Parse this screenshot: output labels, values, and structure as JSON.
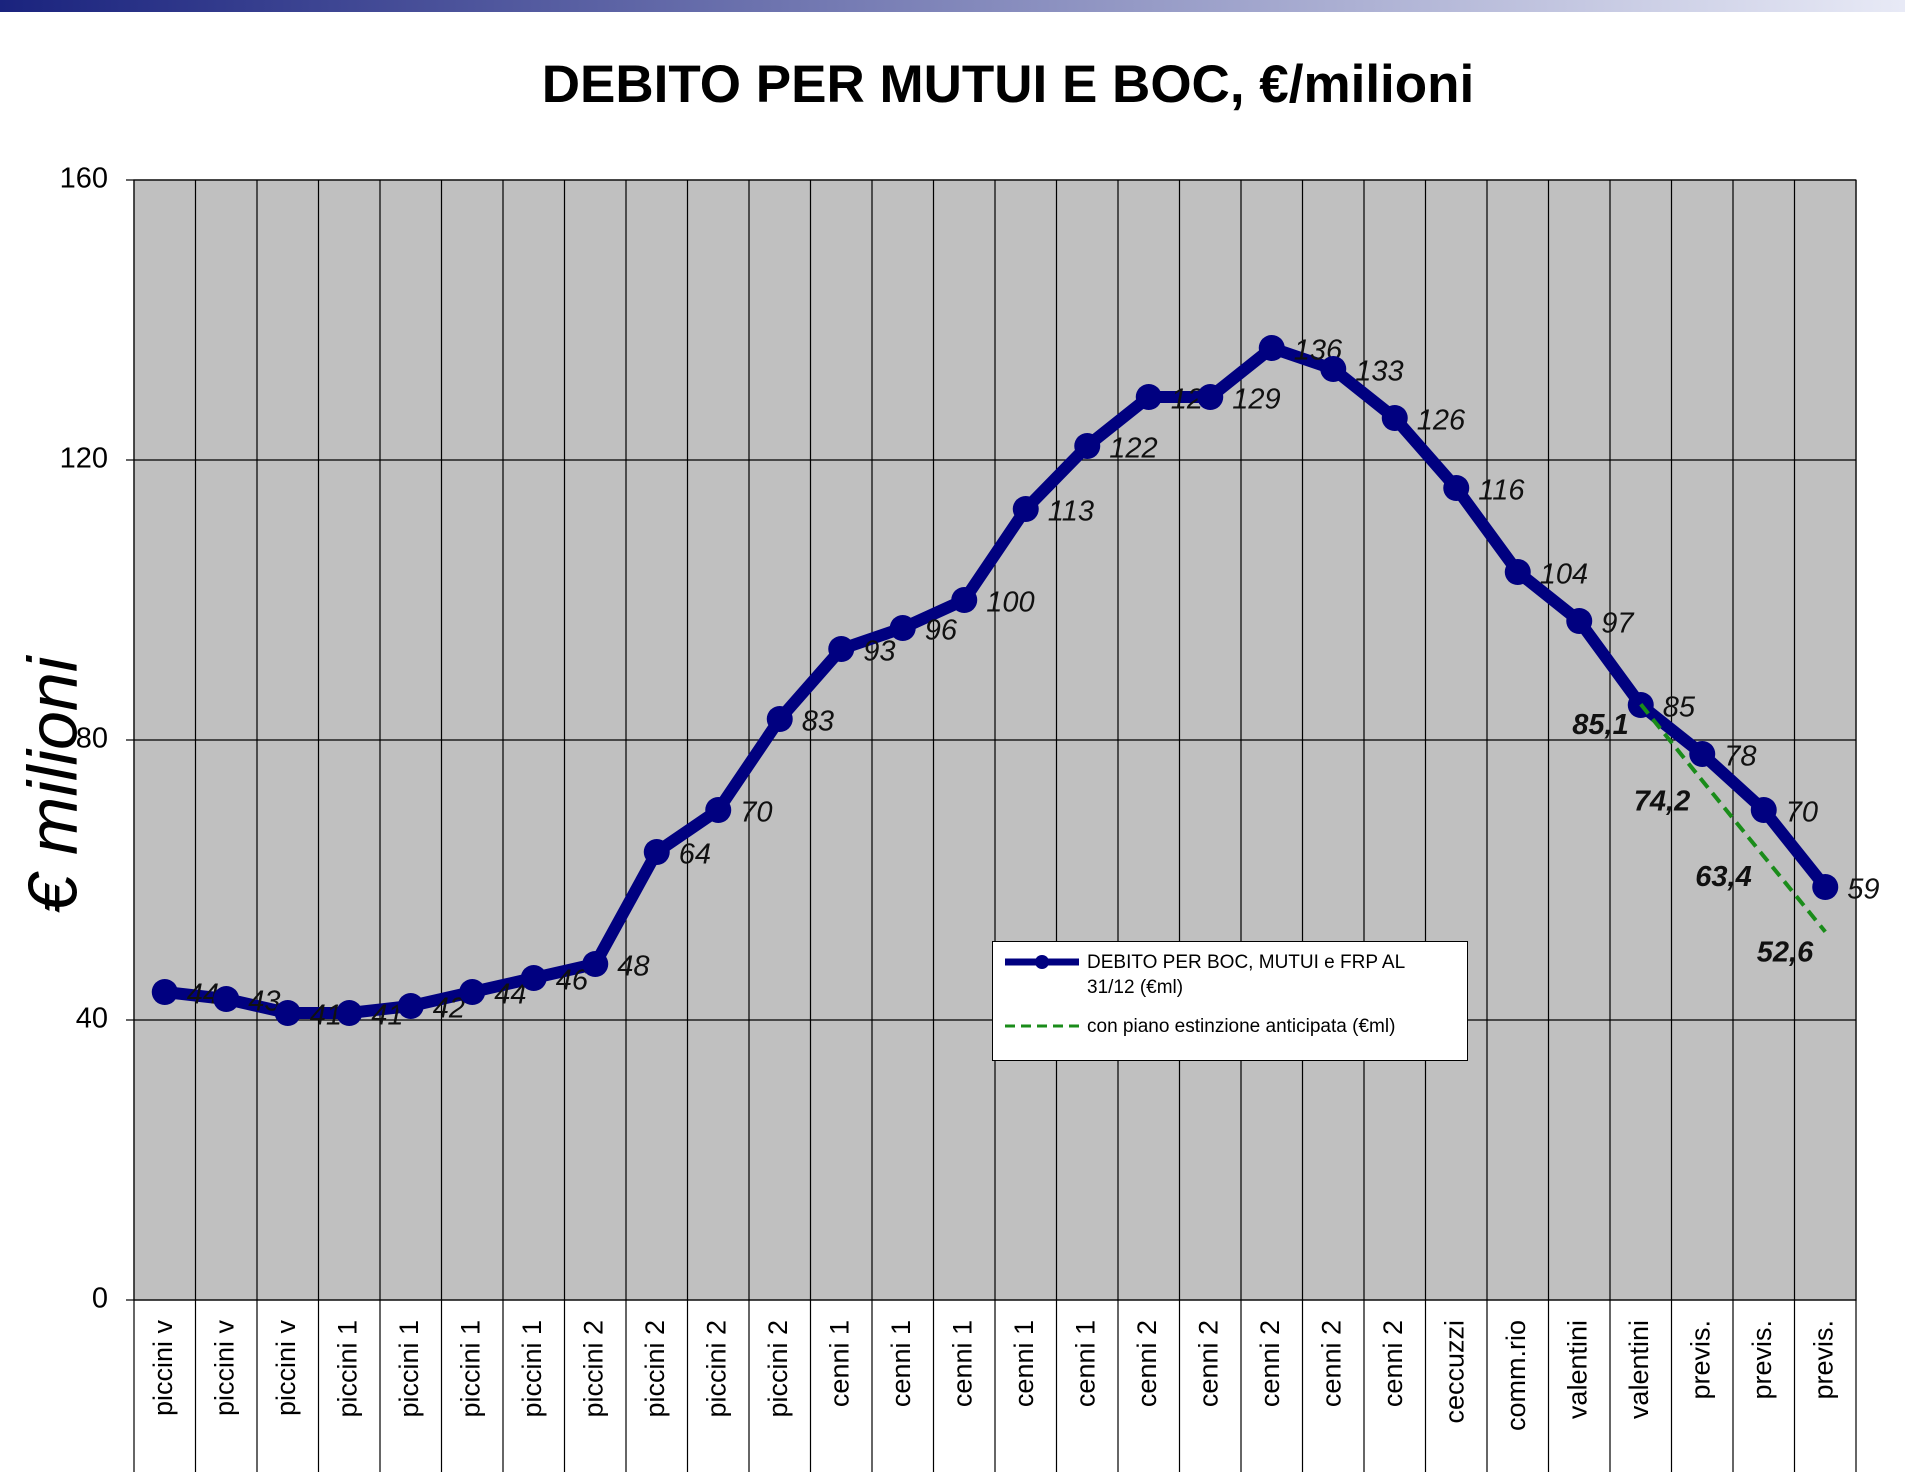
{
  "chart_data": {
    "type": "line",
    "title": "DEBITO PER MUTUI E BOC, €/milioni",
    "y_label": "€ milioni",
    "categories": [
      "piccini v",
      "piccini v",
      "piccini v",
      "piccini 1",
      "piccini 1",
      "piccini 1",
      "piccini 1",
      "piccini 2",
      "piccini 2",
      "piccini 2",
      "piccini 2",
      "cenni 1",
      "cenni 1",
      "cenni 1",
      "cenni 1",
      "cenni 1",
      "cenni 2",
      "cenni 2",
      "cenni 2",
      "cenni 2",
      "cenni 2",
      "ceccuzzi",
      "comm.rio",
      "valentini",
      "valentini",
      "previs.",
      "previs.",
      "previs."
    ],
    "series": [
      {
        "name": "DEBITO PER BOC, MUTUI e FRP AL 31/12 (€ml)",
        "color": "#000080",
        "style": "solid",
        "markers": true,
        "values": [
          44,
          43,
          41,
          41,
          42,
          44,
          46,
          48,
          64,
          70,
          83,
          93,
          96,
          100,
          113,
          122,
          129,
          129,
          136,
          133,
          126,
          116,
          104,
          97,
          85,
          78,
          70,
          59
        ]
      },
      {
        "name": "con piano  estinzione  anticipata  (€ml)",
        "color": "#1a8c1a",
        "style": "dashed",
        "markers": false,
        "values": [
          null,
          null,
          null,
          null,
          null,
          null,
          null,
          null,
          null,
          null,
          null,
          null,
          null,
          null,
          null,
          null,
          null,
          null,
          null,
          null,
          null,
          null,
          null,
          null,
          85.1,
          74.2,
          63.4,
          52.6
        ],
        "value_labels": [
          null,
          null,
          null,
          null,
          null,
          null,
          null,
          null,
          null,
          null,
          null,
          null,
          null,
          null,
          null,
          null,
          null,
          null,
          null,
          null,
          null,
          null,
          null,
          null,
          "85,1",
          "74,2",
          "63,4",
          "52,6"
        ]
      }
    ],
    "ylim": [
      0,
      160
    ],
    "yticks": [
      0,
      40,
      80,
      120,
      160
    ],
    "grid": true
  }
}
